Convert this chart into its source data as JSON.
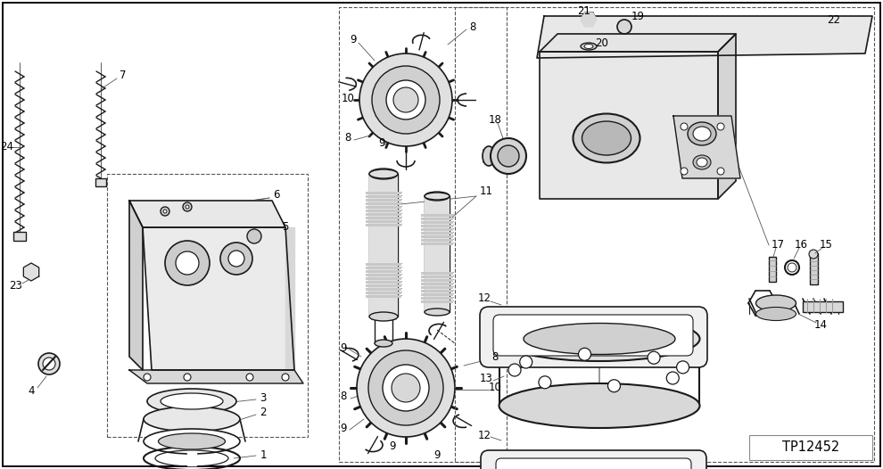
{
  "fig_width": 9.9,
  "fig_height": 5.26,
  "dpi": 100,
  "bg_color": "#ffffff",
  "line_color": "#1a1a1a",
  "border_color": "#000000",
  "watermark": "TP12452",
  "label_fs": 8.5
}
